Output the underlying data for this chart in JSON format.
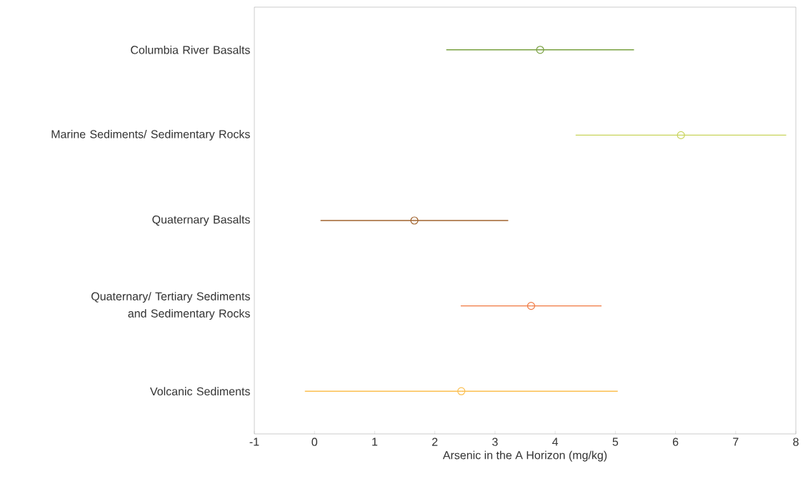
{
  "chart_data": {
    "type": "scatter",
    "orientation": "horizontal",
    "xlabel": "Arsenic in the A Horizon (mg/kg)",
    "categories": [
      "Columbia River Basalts",
      "Marine Sediments/ Sedimentary Rocks",
      "Quaternary Basalts",
      "Quaternary/ Tertiary Sediments and Sedimentary Rocks",
      "Volcanic Sediments"
    ],
    "values": [
      3.75,
      6.09,
      1.66,
      3.6,
      2.44
    ],
    "errors": [
      1.56,
      1.75,
      1.56,
      1.17,
      2.6
    ],
    "colors": [
      "#78a040",
      "#c8d45a",
      "#a0622d",
      "#f07840",
      "#fbbf50"
    ],
    "xlim": [
      -1,
      8
    ],
    "xticks": [
      -1,
      0,
      1,
      2,
      3,
      4,
      5,
      6,
      7,
      8
    ],
    "marker": "circle",
    "grid": false
  }
}
